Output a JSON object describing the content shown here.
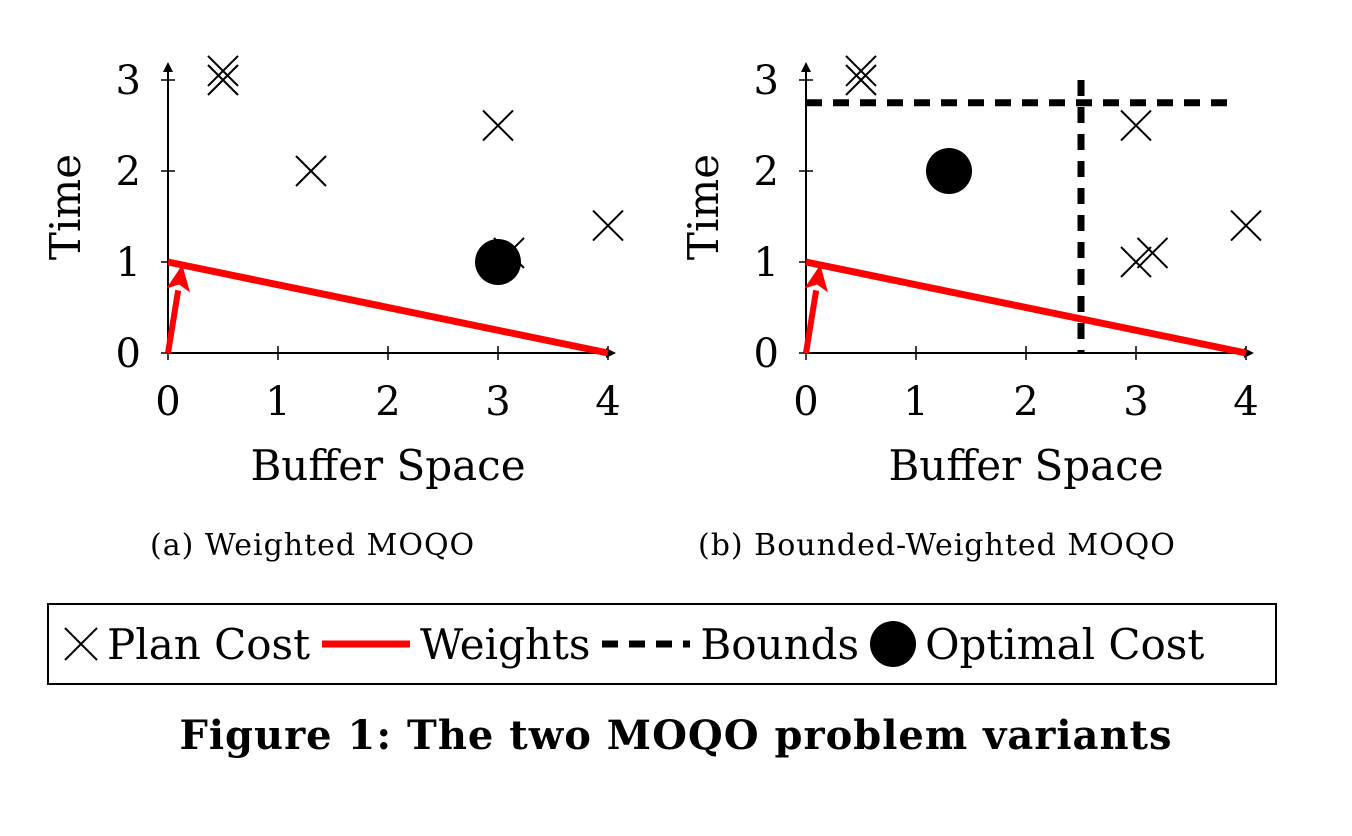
{
  "chart_data": [
    {
      "type": "scatter",
      "title": "(a) Weighted MOQO",
      "xlabel": "Buffer Space",
      "ylabel": "Time",
      "xlim": [
        0,
        4
      ],
      "ylim": [
        0,
        3
      ],
      "x_ticks": [
        "0",
        "1",
        "2",
        "3",
        "4"
      ],
      "y_ticks": [
        "0",
        "1",
        "2",
        "3"
      ],
      "series": [
        {
          "name": "Plan Cost",
          "marker": "cross",
          "x": [
            0.5,
            0.5,
            1.3,
            3.0,
            3.1,
            4.0
          ],
          "y": [
            3.0,
            3.1,
            2.0,
            2.5,
            1.1,
            1.4
          ]
        },
        {
          "name": "Weights",
          "kind": "line",
          "color": "#ff0000",
          "x": [
            0,
            4
          ],
          "y": [
            1,
            0
          ]
        },
        {
          "name": "Optimal Cost",
          "marker": "dot",
          "x": [
            3.0
          ],
          "y": [
            1.0
          ]
        }
      ],
      "weight_vector": {
        "color": "#ff0000",
        "from": [
          0,
          0
        ],
        "to": [
          0.13,
          0.97
        ]
      }
    },
    {
      "type": "scatter",
      "title": "(b) Bounded-Weighted MOQO",
      "xlabel": "Buffer Space",
      "ylabel": "Time",
      "xlim": [
        0,
        4
      ],
      "ylim": [
        0,
        3
      ],
      "x_ticks": [
        "0",
        "1",
        "2",
        "3",
        "4"
      ],
      "y_ticks": [
        "0",
        "1",
        "2",
        "3"
      ],
      "series": [
        {
          "name": "Plan Cost",
          "marker": "cross",
          "x": [
            0.5,
            0.5,
            3.0,
            3.0,
            3.15,
            4.0
          ],
          "y": [
            3.0,
            3.1,
            2.5,
            1.0,
            1.1,
            1.4
          ]
        },
        {
          "name": "Weights",
          "kind": "line",
          "color": "#ff0000",
          "x": [
            0,
            4
          ],
          "y": [
            1,
            0
          ]
        },
        {
          "name": "Optimal Cost",
          "marker": "dot",
          "x": [
            1.3
          ],
          "y": [
            2.0
          ]
        }
      ],
      "weight_vector": {
        "color": "#ff0000",
        "from": [
          0,
          0
        ],
        "to": [
          0.13,
          0.97
        ]
      },
      "bounds": {
        "x": 2.5,
        "y": 2.75
      }
    }
  ],
  "legend": {
    "items": [
      {
        "label": "Plan Cost"
      },
      {
        "label": "Weights"
      },
      {
        "label": "Bounds"
      },
      {
        "label": "Optimal Cost"
      }
    ]
  },
  "figure_caption": "Figure 1: The two MOQO problem variants",
  "colors": {
    "weights": "#ff0000",
    "ink": "#000000"
  }
}
